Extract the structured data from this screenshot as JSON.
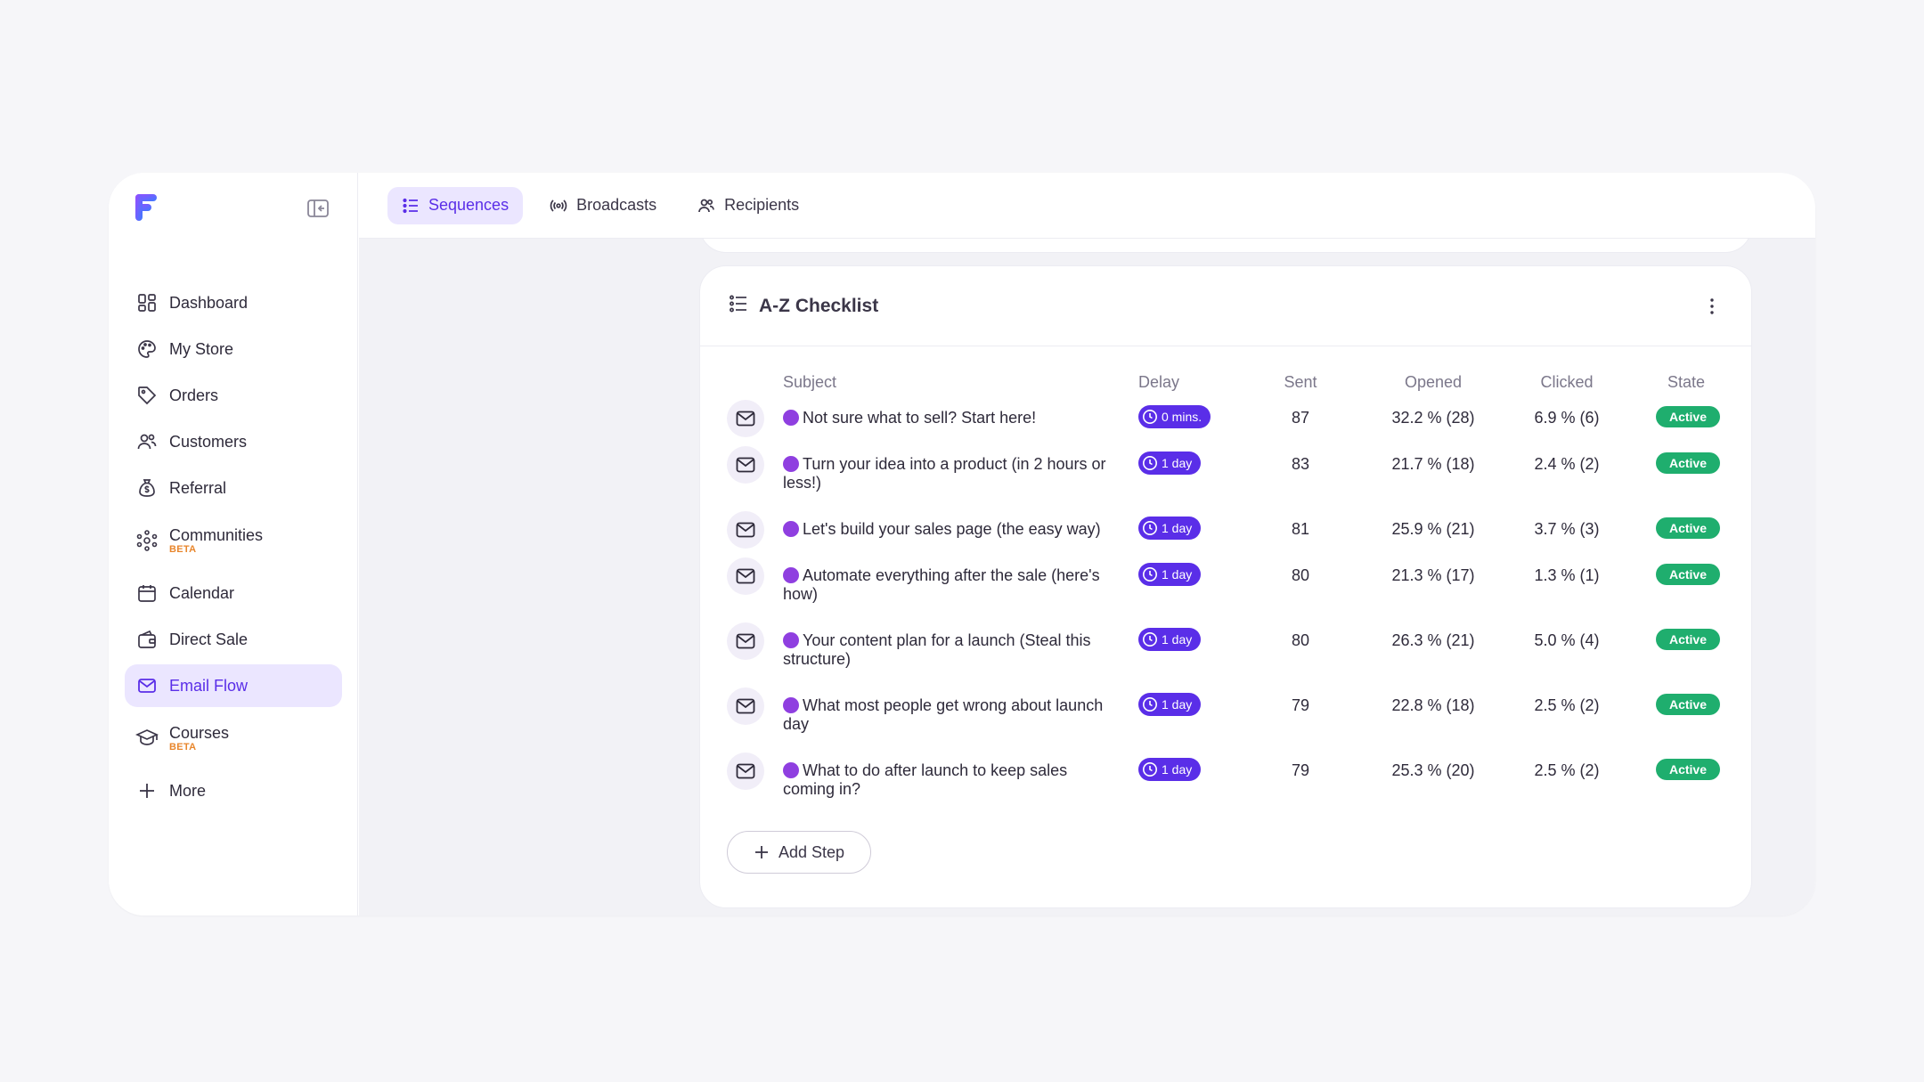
{
  "sidebar": {
    "items": [
      {
        "label": "Dashboard",
        "icon": "dashboard-icon"
      },
      {
        "label": "My Store",
        "icon": "palette-icon"
      },
      {
        "label": "Orders",
        "icon": "tag-icon"
      },
      {
        "label": "Customers",
        "icon": "users-icon"
      },
      {
        "label": "Referral",
        "icon": "money-bag-icon"
      },
      {
        "label": "Communities",
        "icon": "community-icon",
        "badge": "BETA"
      },
      {
        "label": "Calendar",
        "icon": "calendar-icon"
      },
      {
        "label": "Direct Sale",
        "icon": "wallet-icon"
      },
      {
        "label": "Email Flow",
        "icon": "mail-icon",
        "active": true
      },
      {
        "label": "Courses",
        "icon": "graduation-cap-icon",
        "badge": "BETA"
      },
      {
        "label": "More",
        "icon": "plus-icon"
      }
    ]
  },
  "tabs": [
    {
      "label": "Sequences",
      "icon": "list-icon",
      "active": true
    },
    {
      "label": "Broadcasts",
      "icon": "broadcast-icon"
    },
    {
      "label": "Recipients",
      "icon": "users-icon"
    }
  ],
  "sequence": {
    "title": "A-Z Checklist",
    "columns": {
      "subject": "Subject",
      "delay": "Delay",
      "sent": "Sent",
      "opened": "Opened",
      "clicked": "Clicked",
      "state": "State"
    },
    "rows": [
      {
        "subject": "Not sure what to sell? Start here!",
        "delay": "0 mins.",
        "sent": "87",
        "opened": "32.2 % (28)",
        "clicked": "6.9 % (6)",
        "state": "Active"
      },
      {
        "subject": "Turn your idea into a product (in 2 hours or less!)",
        "delay": "1 day",
        "sent": "83",
        "opened": "21.7 % (18)",
        "clicked": "2.4 % (2)",
        "state": "Active"
      },
      {
        "subject": "Let's build your sales page (the easy way)",
        "delay": "1 day",
        "sent": "81",
        "opened": "25.9 % (21)",
        "clicked": "3.7 % (3)",
        "state": "Active"
      },
      {
        "subject": "Automate everything after the sale (here's how)",
        "delay": "1 day",
        "sent": "80",
        "opened": "21.3 % (17)",
        "clicked": "1.3 % (1)",
        "state": "Active"
      },
      {
        "subject": "Your content plan for a launch (Steal this structure)",
        "delay": "1 day",
        "sent": "80",
        "opened": "26.3 % (21)",
        "clicked": "5.0 % (4)",
        "state": "Active"
      },
      {
        "subject": "What most people get wrong about launch day",
        "delay": "1 day",
        "sent": "79",
        "opened": "22.8 % (18)",
        "clicked": "2.5 % (2)",
        "state": "Active"
      },
      {
        "subject": "What to do after launch to keep sales coming in?",
        "delay": "1 day",
        "sent": "79",
        "opened": "25.3 % (20)",
        "clicked": "2.5 % (2)",
        "state": "Active"
      }
    ],
    "add_step_label": "Add Step"
  },
  "colors": {
    "accent": "#5a2ee8",
    "accent_light": "#ebe6ff",
    "active_green": "#1fae6e",
    "beta_orange": "#e8862c",
    "subject_dot": "#8f3fe0"
  }
}
